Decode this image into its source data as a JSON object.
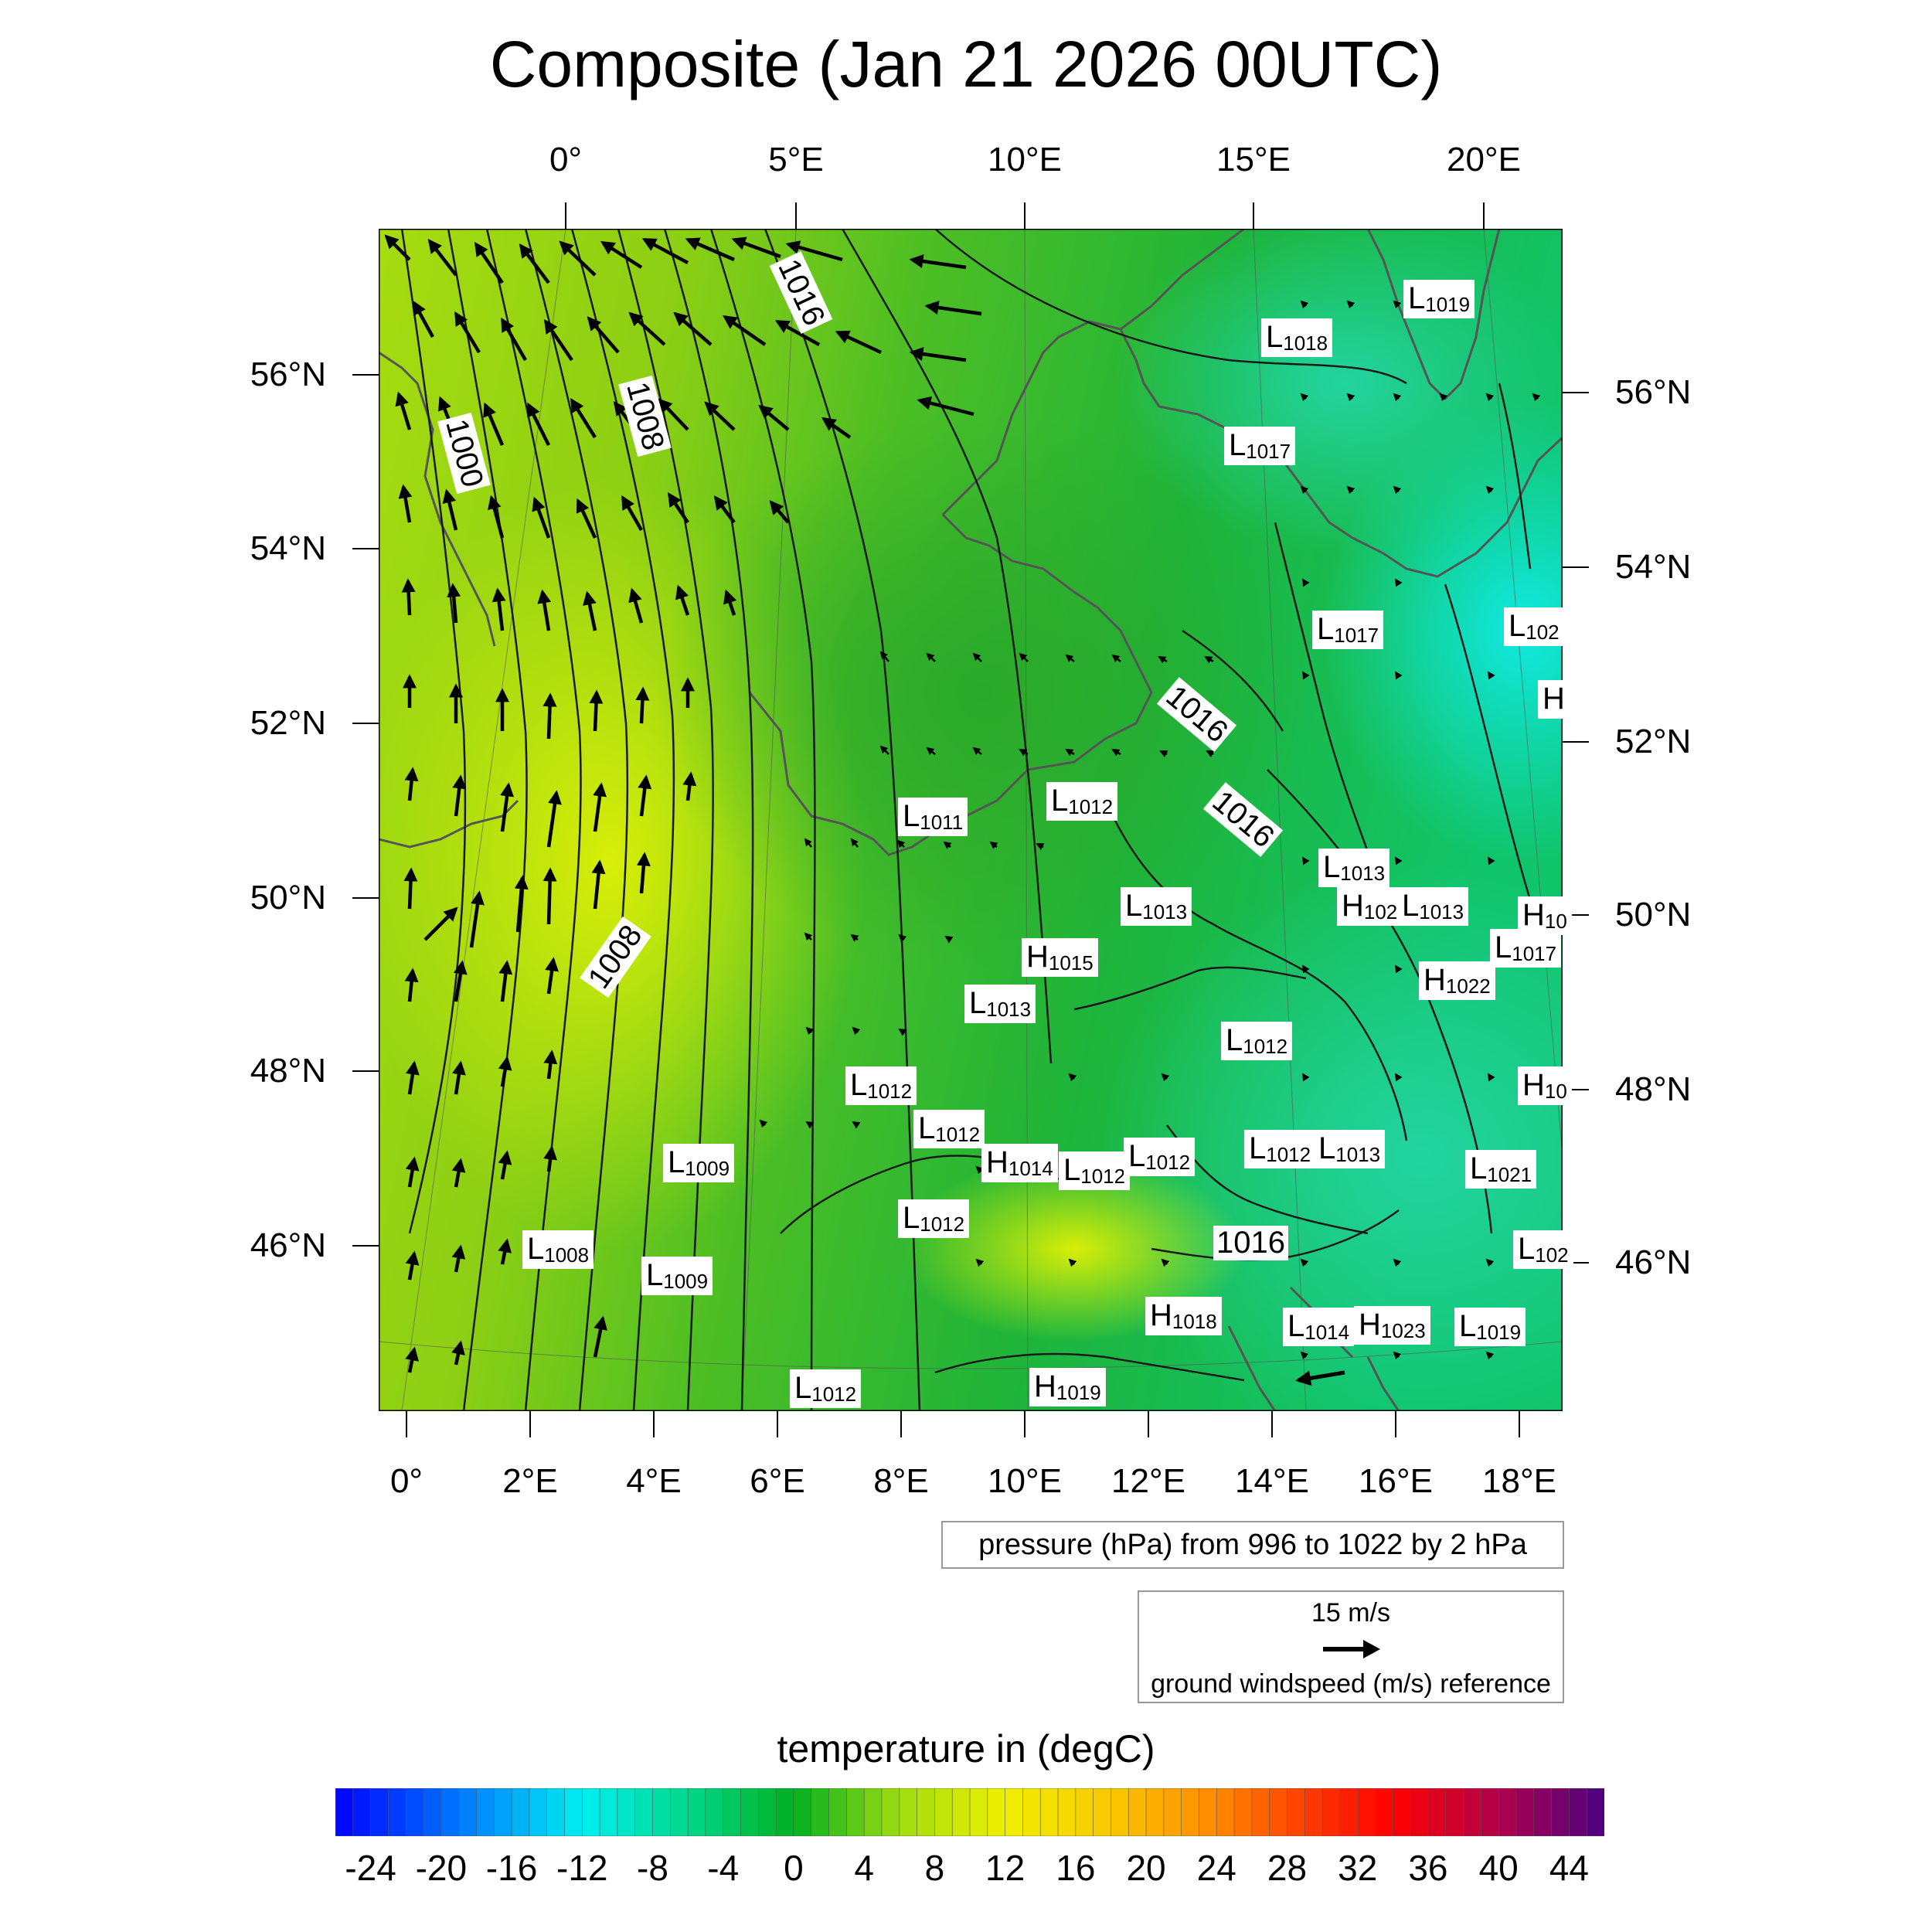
{
  "title": "Composite (Jan 21 2026 00UTC)",
  "top_axis_labels": [
    "0°",
    "5°E",
    "10°E",
    "15°E",
    "20°E"
  ],
  "bottom_axis_labels": [
    "0°",
    "2°E",
    "4°E",
    "6°E",
    "8°E",
    "10°E",
    "12°E",
    "14°E",
    "16°E",
    "18°E"
  ],
  "left_axis_labels": [
    "56°N",
    "54°N",
    "52°N",
    "50°N",
    "48°N",
    "46°N"
  ],
  "right_axis_labels": [
    "56°N",
    "54°N",
    "52°N",
    "50°N",
    "48°N",
    "46°N"
  ],
  "isobar_labels": [
    "1000",
    "1008",
    "1016",
    "1008",
    "1016",
    "1016",
    "1016"
  ],
  "pressure_centers": [
    {
      "type": "L",
      "value": "1019"
    },
    {
      "type": "L",
      "value": "1018"
    },
    {
      "type": "L",
      "value": "1017"
    },
    {
      "type": "L",
      "value": "1017"
    },
    {
      "type": "L",
      "value": "102"
    },
    {
      "type": "H",
      "value": ""
    },
    {
      "type": "L",
      "value": "1012"
    },
    {
      "type": "L",
      "value": "1011"
    },
    {
      "type": "L",
      "value": "1013"
    },
    {
      "type": "L",
      "value": "1013"
    },
    {
      "type": "H",
      "value": "102"
    },
    {
      "type": "L",
      "value": "1013"
    },
    {
      "type": "H",
      "value": "10"
    },
    {
      "type": "H",
      "value": "1015"
    },
    {
      "type": "L",
      "value": "1017"
    },
    {
      "type": "H",
      "value": "1022"
    },
    {
      "type": "L",
      "value": "1013"
    },
    {
      "type": "L",
      "value": "1012"
    },
    {
      "type": "L",
      "value": "1012"
    },
    {
      "type": "H",
      "value": "10"
    },
    {
      "type": "L",
      "value": "1012"
    },
    {
      "type": "L",
      "value": "1009"
    },
    {
      "type": "H",
      "value": "1014"
    },
    {
      "type": "L",
      "value": "1012"
    },
    {
      "type": "L",
      "value": "1012"
    },
    {
      "type": "L",
      "value": "1012"
    },
    {
      "type": "L",
      "value": "1013"
    },
    {
      "type": "L",
      "value": "1021"
    },
    {
      "type": "L",
      "value": "1012"
    },
    {
      "type": "L",
      "value": "1008"
    },
    {
      "type": "L",
      "value": "1009"
    },
    {
      "type": "L",
      "value": "102"
    },
    {
      "type": "H",
      "value": "1018"
    },
    {
      "type": "L",
      "value": "1014"
    },
    {
      "type": "H",
      "value": "1023"
    },
    {
      "type": "L",
      "value": "1019"
    },
    {
      "type": "L",
      "value": "1012"
    },
    {
      "type": "H",
      "value": "1019"
    }
  ],
  "pressure_legend": "pressure (hPa) from 996 to 1022 by 2 hPa",
  "vector_reference": {
    "speed_label": "15 m/s",
    "caption": "ground windspeed (m/s) reference"
  },
  "colorbar": {
    "title": "temperature in (degC)",
    "ticks": [
      "-24",
      "-20",
      "-16",
      "-12",
      "-8",
      "-4",
      "0",
      "4",
      "8",
      "12",
      "16",
      "20",
      "24",
      "28",
      "32",
      "36",
      "40",
      "44"
    ],
    "min": -26,
    "max": 46,
    "start_color": "#0000ff",
    "end_color": "#4b0082"
  }
}
